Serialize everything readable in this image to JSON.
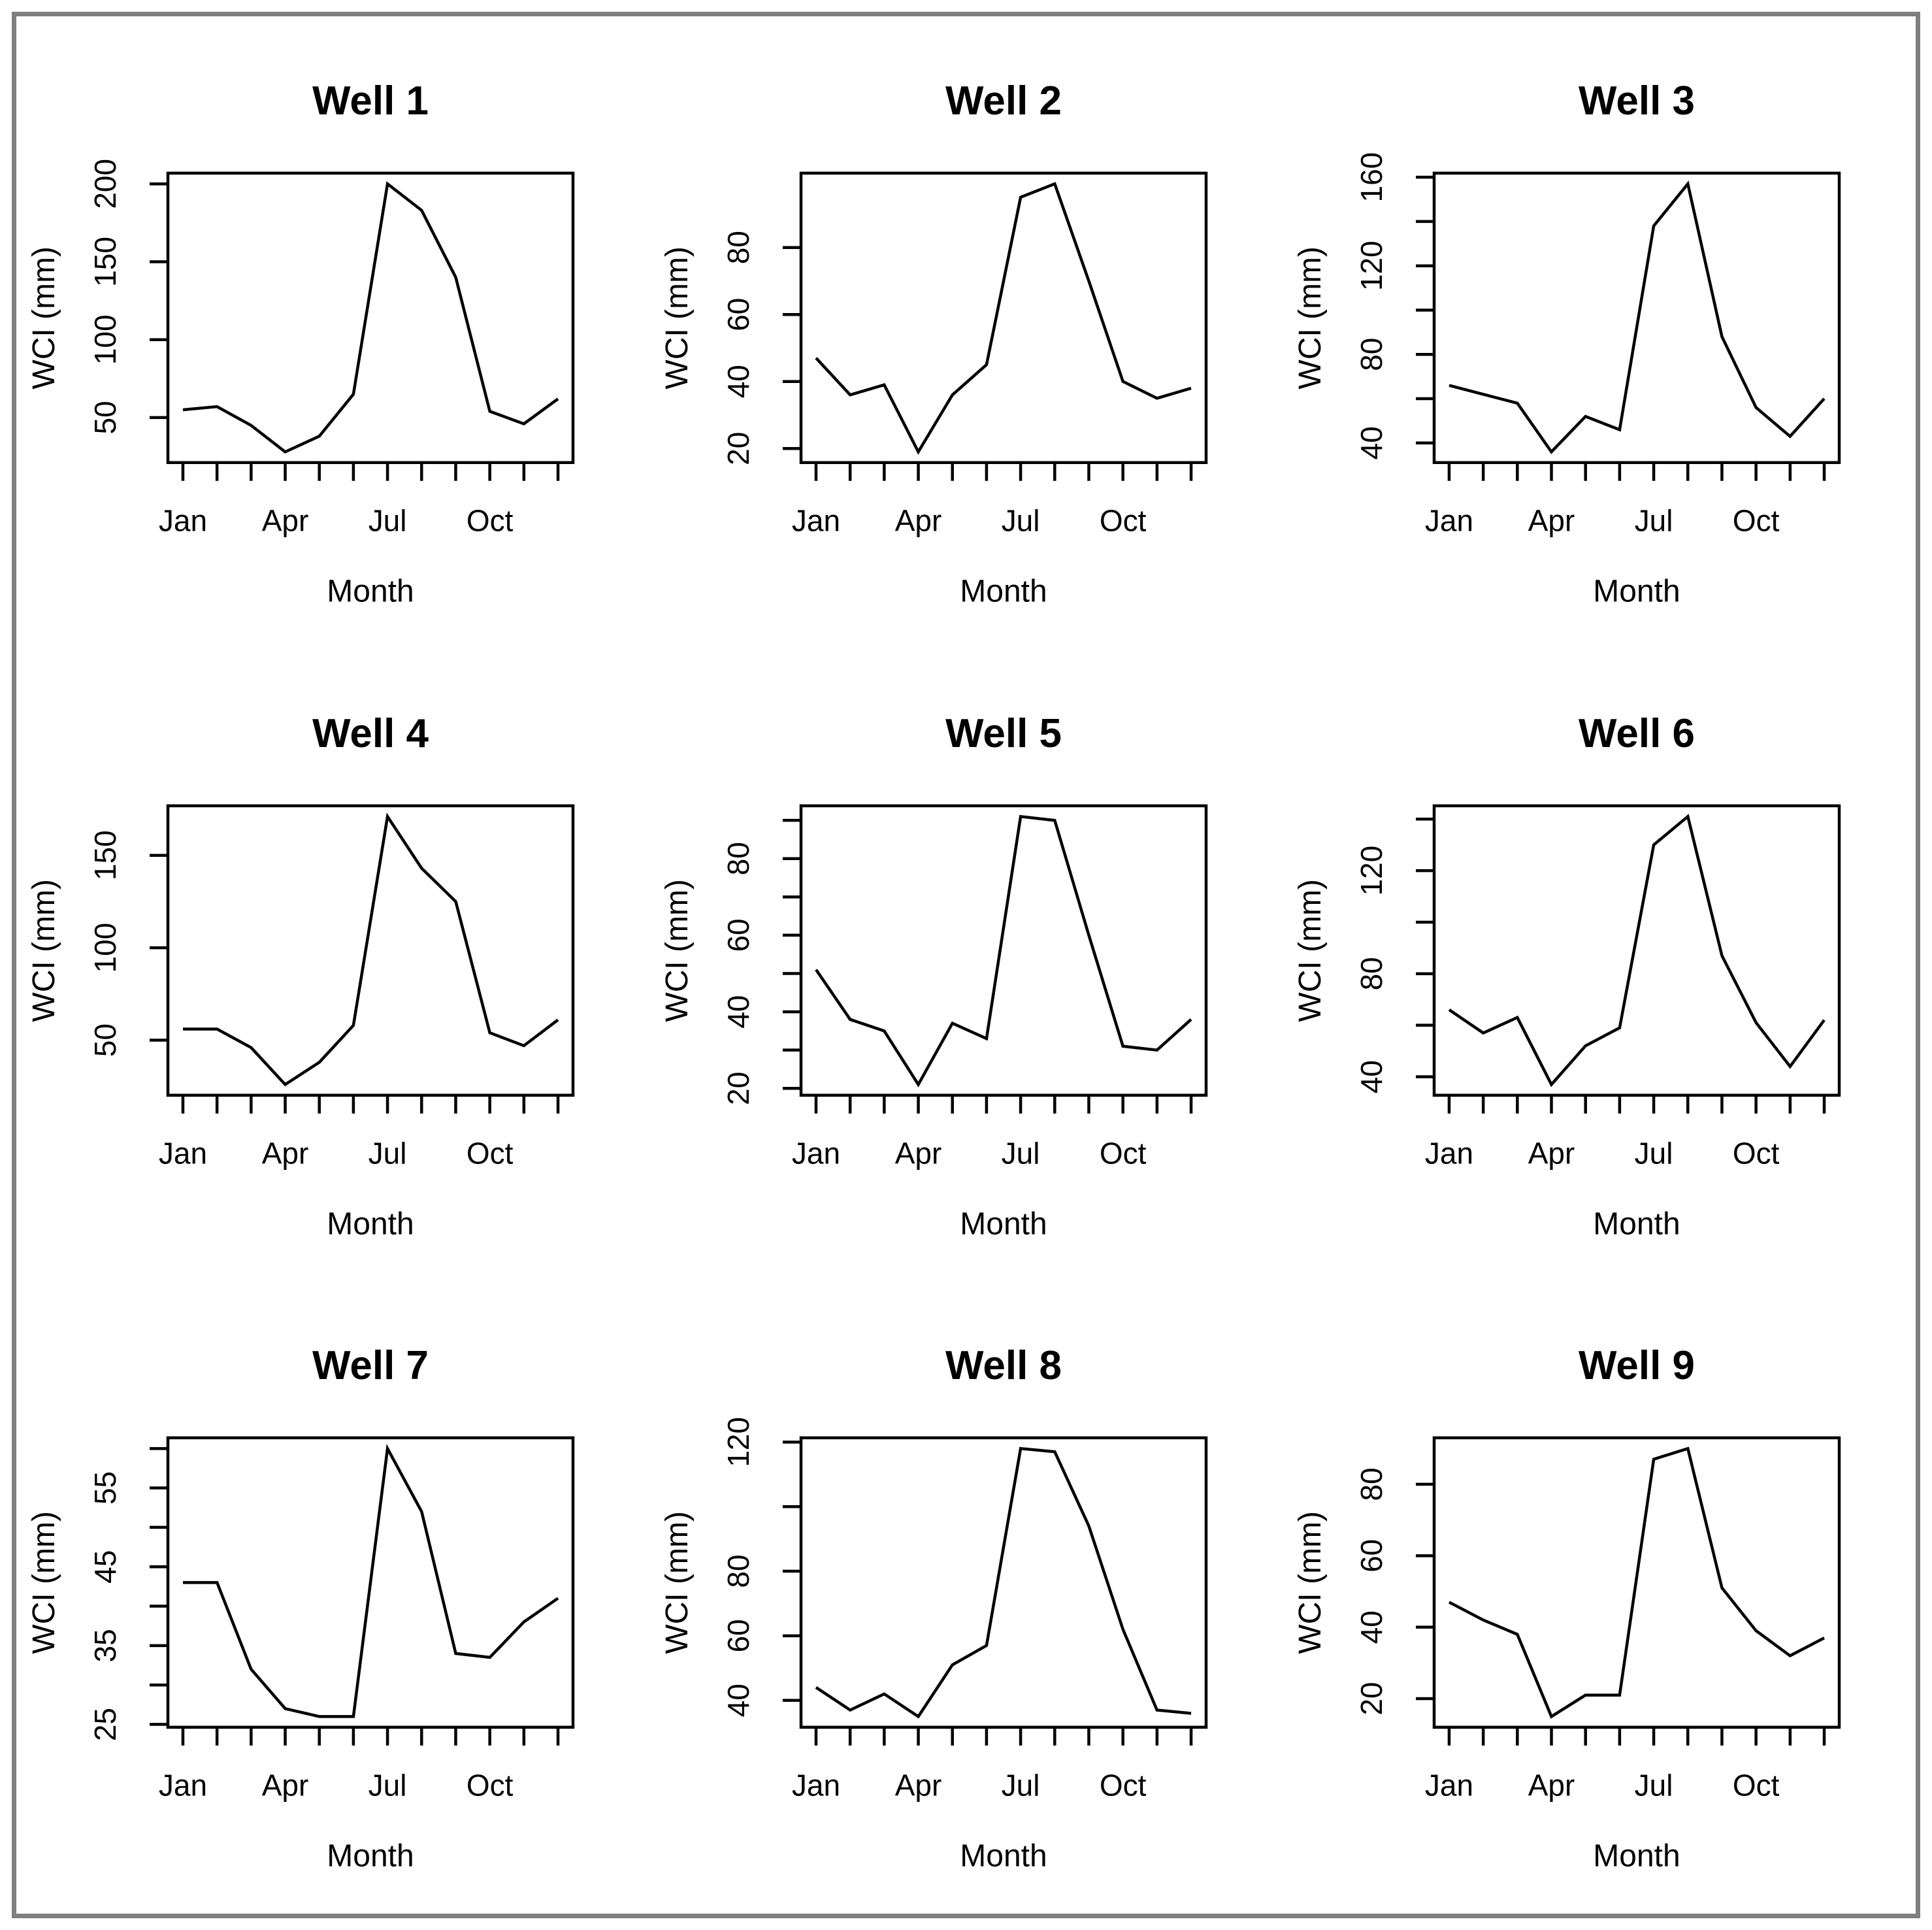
{
  "figure": {
    "x_axis_label": "Month",
    "y_axis_label": "WCI (mm)",
    "n_x_ticks": 12,
    "x_labeled_ticks": [
      {
        "pos": 1,
        "label": "Jan"
      },
      {
        "pos": 4,
        "label": "Apr"
      },
      {
        "pos": 7,
        "label": "Jul"
      },
      {
        "pos": 10,
        "label": "Oct"
      }
    ],
    "months": [
      "Jan",
      "Feb",
      "Mar",
      "Apr",
      "May",
      "Jun",
      "Jul",
      "Aug",
      "Sep",
      "Oct",
      "Nov",
      "Dec"
    ]
  },
  "colors": {
    "line": "#000000",
    "text": "#000000",
    "background": "#ffffff",
    "outer_border": "#7f7f7f"
  },
  "chart_data": [
    {
      "type": "line",
      "title": "Well 1",
      "xlabel": "Month",
      "ylabel": "WCI (mm)",
      "categories": [
        "Jan",
        "Feb",
        "Mar",
        "Apr",
        "May",
        "Jun",
        "Jul",
        "Aug",
        "Sep",
        "Oct",
        "Nov",
        "Dec"
      ],
      "values": [
        55,
        57,
        45,
        28,
        38,
        65,
        200,
        183,
        140,
        54,
        46,
        62
      ],
      "ylim": [
        21,
        207
      ],
      "grid": false,
      "y_ticks": [
        {
          "v": 50,
          "label": "50"
        },
        {
          "v": 100,
          "label": "100"
        },
        {
          "v": 150,
          "label": "150"
        },
        {
          "v": 200,
          "label": "200"
        }
      ]
    },
    {
      "type": "line",
      "title": "Well 2",
      "xlabel": "Month",
      "ylabel": "WCI (mm)",
      "categories": [
        "Jan",
        "Feb",
        "Mar",
        "Apr",
        "May",
        "Jun",
        "Jul",
        "Aug",
        "Sep",
        "Oct",
        "Nov",
        "Dec"
      ],
      "values": [
        47,
        36,
        39,
        19,
        36,
        45,
        95,
        99,
        70,
        40,
        35,
        38
      ],
      "ylim": [
        16,
        102
      ],
      "grid": false,
      "y_ticks": [
        {
          "v": 20,
          "label": "20"
        },
        {
          "v": 40,
          "label": "40"
        },
        {
          "v": 60,
          "label": "60"
        },
        {
          "v": 80,
          "label": "80"
        }
      ]
    },
    {
      "type": "line",
      "title": "Well 3",
      "xlabel": "Month",
      "ylabel": "WCI (mm)",
      "categories": [
        "Jan",
        "Feb",
        "Mar",
        "Apr",
        "May",
        "Jun",
        "Jul",
        "Aug",
        "Sep",
        "Oct",
        "Nov",
        "Dec"
      ],
      "values": [
        66,
        62,
        58,
        36,
        52,
        46,
        138,
        157,
        88,
        56,
        43,
        60
      ],
      "ylim": [
        31,
        162
      ],
      "grid": false,
      "y_ticks": [
        {
          "v": 40,
          "label": "40"
        },
        {
          "v": 60,
          "label": ""
        },
        {
          "v": 80,
          "label": "80"
        },
        {
          "v": 100,
          "label": ""
        },
        {
          "v": 120,
          "label": "120"
        },
        {
          "v": 140,
          "label": ""
        },
        {
          "v": 160,
          "label": "160"
        }
      ]
    },
    {
      "type": "line",
      "title": "Well 4",
      "xlabel": "Month",
      "ylabel": "WCI (mm)",
      "categories": [
        "Jan",
        "Feb",
        "Mar",
        "Apr",
        "May",
        "Jun",
        "Jul",
        "Aug",
        "Sep",
        "Oct",
        "Nov",
        "Dec"
      ],
      "values": [
        56,
        56,
        46,
        26,
        38,
        58,
        171,
        143,
        125,
        54,
        47,
        61
      ],
      "ylim": [
        20,
        177
      ],
      "grid": false,
      "y_ticks": [
        {
          "v": 50,
          "label": "50"
        },
        {
          "v": 100,
          "label": "100"
        },
        {
          "v": 150,
          "label": "150"
        }
      ]
    },
    {
      "type": "line",
      "title": "Well 5",
      "xlabel": "Month",
      "ylabel": "WCI (mm)",
      "categories": [
        "Jan",
        "Feb",
        "Mar",
        "Apr",
        "May",
        "Jun",
        "Jul",
        "Aug",
        "Sep",
        "Oct",
        "Nov",
        "Dec"
      ],
      "values": [
        51,
        38,
        35,
        21,
        37,
        33,
        91,
        90,
        60,
        31,
        30,
        38
      ],
      "ylim": [
        18,
        94
      ],
      "grid": false,
      "y_ticks": [
        {
          "v": 20,
          "label": "20"
        },
        {
          "v": 30,
          "label": ""
        },
        {
          "v": 40,
          "label": "40"
        },
        {
          "v": 50,
          "label": ""
        },
        {
          "v": 60,
          "label": "60"
        },
        {
          "v": 70,
          "label": ""
        },
        {
          "v": 80,
          "label": "80"
        },
        {
          "v": 90,
          "label": ""
        }
      ]
    },
    {
      "type": "line",
      "title": "Well 6",
      "xlabel": "Month",
      "ylabel": "WCI (mm)",
      "categories": [
        "Jan",
        "Feb",
        "Mar",
        "Apr",
        "May",
        "Jun",
        "Jul",
        "Aug",
        "Sep",
        "Oct",
        "Nov",
        "Dec"
      ],
      "values": [
        66,
        57,
        63,
        37,
        52,
        59,
        130,
        141,
        87,
        61,
        44,
        62
      ],
      "ylim": [
        32,
        145
      ],
      "grid": false,
      "y_ticks": [
        {
          "v": 40,
          "label": "40"
        },
        {
          "v": 60,
          "label": ""
        },
        {
          "v": 80,
          "label": "80"
        },
        {
          "v": 100,
          "label": ""
        },
        {
          "v": 120,
          "label": "120"
        },
        {
          "v": 140,
          "label": ""
        }
      ]
    },
    {
      "type": "line",
      "title": "Well 7",
      "xlabel": "Month",
      "ylabel": "WCI (mm)",
      "categories": [
        "Jan",
        "Feb",
        "Mar",
        "Apr",
        "May",
        "Jun",
        "Jul",
        "Aug",
        "Sep",
        "Oct",
        "Nov",
        "Dec"
      ],
      "values": [
        43,
        43,
        32,
        27,
        26,
        26,
        60,
        52,
        34,
        33.5,
        38,
        41
      ],
      "ylim": [
        24.6,
        61.4
      ],
      "grid": false,
      "y_ticks": [
        {
          "v": 25,
          "label": "25"
        },
        {
          "v": 30,
          "label": ""
        },
        {
          "v": 35,
          "label": "35"
        },
        {
          "v": 40,
          "label": ""
        },
        {
          "v": 45,
          "label": "45"
        },
        {
          "v": 50,
          "label": ""
        },
        {
          "v": 55,
          "label": "55"
        },
        {
          "v": 60,
          "label": ""
        }
      ]
    },
    {
      "type": "line",
      "title": "Well 8",
      "xlabel": "Month",
      "ylabel": "WCI (mm)",
      "categories": [
        "Jan",
        "Feb",
        "Mar",
        "Apr",
        "May",
        "Jun",
        "Jul",
        "Aug",
        "Sep",
        "Oct",
        "Nov",
        "Dec"
      ],
      "values": [
        44,
        37,
        42,
        35,
        51,
        57,
        118,
        117,
        94,
        62,
        37,
        36
      ],
      "ylim": [
        31,
        121
      ],
      "grid": false,
      "y_ticks": [
        {
          "v": 40,
          "label": "40"
        },
        {
          "v": 60,
          "label": "60"
        },
        {
          "v": 80,
          "label": "80"
        },
        {
          "v": 100,
          "label": ""
        },
        {
          "v": 120,
          "label": "120"
        }
      ]
    },
    {
      "type": "line",
      "title": "Well 9",
      "xlabel": "Month",
      "ylabel": "WCI (mm)",
      "categories": [
        "Jan",
        "Feb",
        "Mar",
        "Apr",
        "May",
        "Jun",
        "Jul",
        "Aug",
        "Sep",
        "Oct",
        "Nov",
        "Dec"
      ],
      "values": [
        47,
        42,
        38,
        15,
        21,
        21,
        87,
        90,
        51,
        39,
        32,
        37
      ],
      "ylim": [
        12,
        93
      ],
      "grid": false,
      "y_ticks": [
        {
          "v": 20,
          "label": "20"
        },
        {
          "v": 40,
          "label": "40"
        },
        {
          "v": 60,
          "label": "60"
        },
        {
          "v": 80,
          "label": "80"
        }
      ]
    }
  ]
}
